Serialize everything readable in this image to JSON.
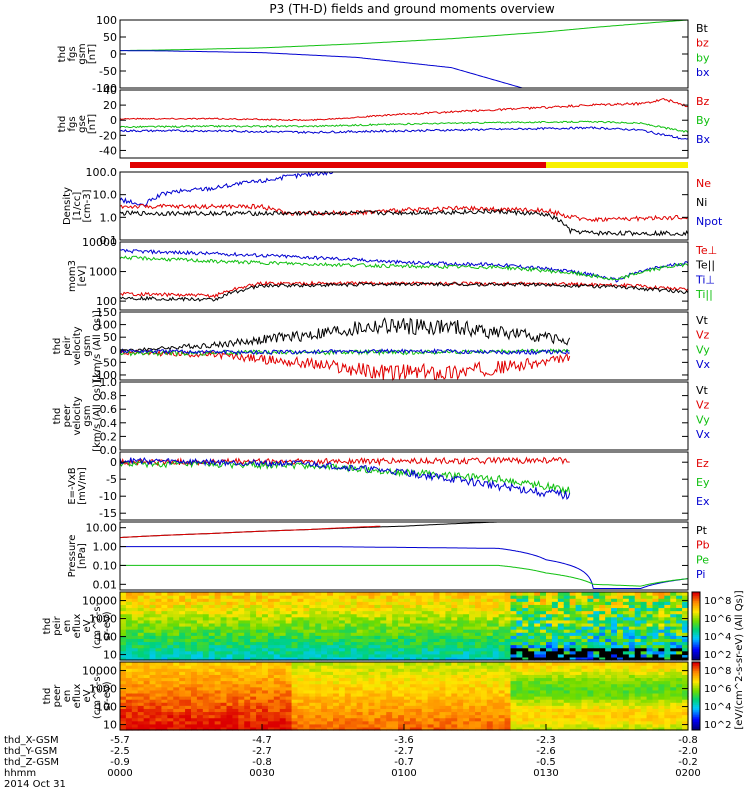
{
  "title": "P3 (TH-D) fields and ground moments overview",
  "colors": {
    "black": "#000000",
    "red": "#e00000",
    "green": "#10c010",
    "blue": "#0000d0",
    "yellow": "#f8f000"
  },
  "chart_data": [
    {
      "type": "line",
      "panel": "fgs_gsm",
      "ylabel": [
        "thd",
        "fgs",
        "gsm",
        "[nT]"
      ],
      "yticks": [
        "100",
        "50",
        "0",
        "-50",
        "-100"
      ],
      "ylim": [
        -100,
        100
      ],
      "legend": [
        {
          "name": "Bt",
          "color": "black"
        },
        {
          "name": "bz",
          "color": "red"
        },
        {
          "name": "by",
          "color": "green"
        },
        {
          "name": "bx",
          "color": "blue"
        }
      ],
      "series": [
        {
          "name": "by",
          "color": "green",
          "x": [
            0,
            10,
            30,
            50,
            70,
            90,
            100,
            115,
            120
          ],
          "y": [
            10,
            12,
            18,
            30,
            45,
            65,
            78,
            95,
            100
          ]
        },
        {
          "name": "bx",
          "color": "blue",
          "x": [
            0,
            10,
            30,
            50,
            70,
            85
          ],
          "y": [
            10,
            9,
            4,
            -10,
            -40,
            -100
          ]
        },
        {
          "name": "Bt",
          "color": "black",
          "x": [
            0,
            3
          ],
          "y": [
            100,
            100
          ]
        }
      ]
    },
    {
      "type": "line",
      "panel": "fgs_gse",
      "ylabel": [
        "thd",
        "fgs",
        "gse",
        "[nT]"
      ],
      "yticks": [
        "40",
        "20",
        "0",
        "-20",
        "-40"
      ],
      "ylim": [
        -50,
        40
      ],
      "legend": [
        {
          "name": "Bz",
          "color": "red"
        },
        {
          "name": "By",
          "color": "green"
        },
        {
          "name": "Bx",
          "color": "blue"
        }
      ],
      "series": [
        {
          "name": "Bz",
          "color": "red",
          "x": [
            0,
            20,
            40,
            60,
            80,
            100,
            110,
            115,
            120
          ],
          "y": [
            2,
            2,
            0,
            8,
            14,
            20,
            22,
            28,
            18
          ]
        },
        {
          "name": "By",
          "color": "green",
          "x": [
            0,
            20,
            40,
            60,
            80,
            100,
            110,
            120
          ],
          "y": [
            -9,
            -8,
            -8,
            -5,
            -3,
            -2,
            -4,
            -16
          ]
        },
        {
          "name": "Bx",
          "color": "blue",
          "x": [
            0,
            20,
            40,
            60,
            80,
            100,
            110,
            120
          ],
          "y": [
            -14,
            -14,
            -16,
            -14,
            -12,
            -10,
            -13,
            -26
          ]
        }
      ]
    },
    {
      "type": "line",
      "panel": "density",
      "scale": "log",
      "ylabel": [
        "Density",
        "[1/cc]",
        "[cm-3]"
      ],
      "yticks": [
        "100.0",
        "10.0",
        "1.0",
        "0.1"
      ],
      "ylim": [
        0.1,
        100
      ],
      "legend": [
        {
          "name": "Ne",
          "color": "red"
        },
        {
          "name": "Ni",
          "color": "black"
        },
        {
          "name": "Npot",
          "color": "blue"
        }
      ],
      "series": [
        {
          "name": "Npot",
          "color": "blue",
          "x": [
            0,
            5,
            10,
            20,
            30,
            40,
            45
          ],
          "y": [
            6,
            3,
            12,
            20,
            40,
            80,
            100
          ]
        },
        {
          "name": "Ne",
          "color": "red",
          "x": [
            0,
            30,
            35,
            50,
            70,
            90,
            95,
            100,
            120
          ],
          "y": [
            3,
            3,
            1.5,
            1.6,
            2.5,
            2,
            1,
            0.8,
            1
          ]
        },
        {
          "name": "Ni",
          "color": "black",
          "x": [
            0,
            20,
            40,
            60,
            80,
            90,
            95,
            100,
            120
          ],
          "y": [
            1.5,
            1.5,
            1.5,
            1.6,
            1.8,
            1.3,
            0.25,
            0.2,
            0.2
          ]
        }
      ]
    },
    {
      "type": "line",
      "panel": "temperature",
      "scale": "log",
      "ylabel": [
        "mom3",
        "[eV]"
      ],
      "yticks": [
        "10000",
        "1000",
        "100"
      ],
      "ylim": [
        50,
        10000
      ],
      "legend": [
        {
          "name": "Te⊥",
          "color": "red"
        },
        {
          "name": "Te||",
          "color": "black"
        },
        {
          "name": "Ti⊥",
          "color": "blue"
        },
        {
          "name": "Ti||",
          "color": "green"
        }
      ],
      "series": [
        {
          "name": "Ti⊥",
          "color": "blue",
          "x": [
            0,
            20,
            40,
            60,
            80,
            95,
            105,
            120
          ],
          "y": [
            5000,
            4000,
            3000,
            2000,
            1700,
            1000,
            500,
            2000
          ]
        },
        {
          "name": "Ti||",
          "color": "green",
          "x": [
            0,
            20,
            40,
            60,
            80,
            95,
            105,
            120
          ],
          "y": [
            3000,
            2200,
            1800,
            1500,
            1400,
            900,
            500,
            1800
          ]
        },
        {
          "name": "Te⊥",
          "color": "red",
          "x": [
            0,
            20,
            30,
            60,
            90,
            105,
            120
          ],
          "y": [
            180,
            150,
            400,
            400,
            380,
            350,
            250
          ]
        },
        {
          "name": "Te||",
          "color": "black",
          "x": [
            0,
            20,
            30,
            60,
            90,
            105,
            120
          ],
          "y": [
            130,
            110,
            330,
            380,
            360,
            300,
            200
          ]
        }
      ]
    },
    {
      "type": "line",
      "panel": "peir_velocity",
      "ylabel": [
        "thd",
        "peir",
        "velocity",
        "gsm",
        "[km/s (All Qs)]"
      ],
      "yticks": [
        "150",
        "100",
        "50",
        "0",
        "-50",
        "-100"
      ],
      "ylim": [
        -120,
        150
      ],
      "legend": [
        {
          "name": "Vt",
          "color": "black"
        },
        {
          "name": "Vz",
          "color": "red"
        },
        {
          "name": "Vy",
          "color": "green"
        },
        {
          "name": "Vx",
          "color": "blue"
        }
      ],
      "series": [
        {
          "name": "Vt",
          "color": "black",
          "x": [
            0,
            20,
            40,
            55,
            70,
            90,
            95
          ],
          "y": [
            -5,
            20,
            60,
            95,
            90,
            50,
            35
          ]
        },
        {
          "name": "Vz",
          "color": "red",
          "x": [
            0,
            20,
            40,
            55,
            70,
            90,
            95
          ],
          "y": [
            -10,
            -20,
            -55,
            -90,
            -90,
            -50,
            -30
          ]
        },
        {
          "name": "Vy",
          "color": "green",
          "x": [
            0,
            30,
            60,
            90,
            95
          ],
          "y": [
            -15,
            -10,
            -10,
            -5,
            -5
          ]
        },
        {
          "name": "Vx",
          "color": "blue",
          "x": [
            0,
            30,
            60,
            90,
            95
          ],
          "y": [
            -5,
            -10,
            -5,
            -10,
            -8
          ]
        }
      ]
    },
    {
      "type": "line",
      "panel": "peer_velocity",
      "ylabel": [
        "thd",
        "peer",
        "velocity",
        "gsm",
        "[km/s (All Qs)]"
      ],
      "yticks": [
        "1.0",
        "0.8",
        "0.6",
        "0.4",
        "0.2",
        "0.0"
      ],
      "ylim": [
        0,
        1
      ],
      "legend": [
        {
          "name": "Vt",
          "color": "black"
        },
        {
          "name": "Vz",
          "color": "red"
        },
        {
          "name": "Vy",
          "color": "green"
        },
        {
          "name": "Vx",
          "color": "blue"
        }
      ],
      "series": []
    },
    {
      "type": "line",
      "panel": "efield",
      "ylabel": [
        "E=-VxB",
        "[mV/m]"
      ],
      "yticks": [
        "0",
        "-5",
        "-10",
        "-15"
      ],
      "ylim": [
        -17,
        3
      ],
      "legend": [
        {
          "name": "Ez",
          "color": "red"
        },
        {
          "name": "Ey",
          "color": "green"
        },
        {
          "name": "Ex",
          "color": "blue"
        }
      ],
      "series": [
        {
          "name": "Ez",
          "color": "red",
          "x": [
            0,
            95
          ],
          "y": [
            0,
            0.5
          ]
        },
        {
          "name": "Ey",
          "color": "green",
          "x": [
            0,
            40,
            60,
            80,
            95
          ],
          "y": [
            -0.5,
            -1,
            -3,
            -5,
            -8
          ]
        },
        {
          "name": "Ex",
          "color": "blue",
          "x": [
            0,
            40,
            60,
            80,
            95
          ],
          "y": [
            0.5,
            -0.5,
            -3,
            -7,
            -10
          ]
        }
      ]
    },
    {
      "type": "line",
      "panel": "pressure",
      "scale": "log",
      "ylabel": [
        "Pressure",
        "[nPa]"
      ],
      "yticks": [
        "10.00",
        "1.00",
        "0.10",
        "0.01"
      ],
      "ylim": [
        0.005,
        20
      ],
      "legend": [
        {
          "name": "Pt",
          "color": "black"
        },
        {
          "name": "Pb",
          "color": "red"
        },
        {
          "name": "Pe",
          "color": "green"
        },
        {
          "name": "Pi",
          "color": "blue"
        }
      ],
      "series": [
        {
          "name": "Pt",
          "color": "black",
          "x": [
            0,
            20,
            40,
            60,
            80
          ],
          "y": [
            3,
            5,
            8,
            12,
            20
          ]
        },
        {
          "name": "Pb",
          "color": "red",
          "x": [
            0,
            20,
            40,
            55
          ],
          "y": [
            3,
            5,
            8,
            12
          ]
        },
        {
          "name": "Pi",
          "color": "blue",
          "x": [
            0,
            40,
            80,
            90,
            100,
            110,
            120
          ],
          "y": [
            1,
            1,
            0.8,
            0.2,
            0.006,
            0.006,
            0.02
          ]
        },
        {
          "name": "Pe",
          "color": "green",
          "x": [
            0,
            40,
            80,
            90,
            100,
            110,
            120
          ],
          "y": [
            0.1,
            0.1,
            0.1,
            0.04,
            0.01,
            0.008,
            0.02
          ]
        }
      ]
    },
    {
      "type": "heatmap",
      "panel": "peir_eflux",
      "ylabel": [
        "thd",
        "peir",
        "en",
        "eflux",
        "eV",
        "(cm^2-s-",
        "sr-eV)"
      ],
      "yticks": [
        "10000",
        "1000",
        "100",
        "10"
      ],
      "colorbar_label": "[eV/(cm^2-s-sr-eV) (All Qs)]",
      "colorbar_ticks": [
        "10^8",
        "10^6",
        "10^4",
        "10^2"
      ]
    },
    {
      "type": "heatmap",
      "panel": "peer_eflux",
      "ylabel": [
        "thd",
        "peer",
        "en",
        "eflux",
        "eV",
        "(cm^2-s-",
        "sr-eV)"
      ],
      "yticks": [
        "10000",
        "1000",
        "100",
        "10"
      ],
      "colorbar_label": "[eV/(cm^2-s-sr-eV) (All Qs)]",
      "colorbar_ticks": [
        "10^8",
        "10^6",
        "10^4",
        "10^2"
      ]
    }
  ],
  "xaxis": {
    "xlim": [
      0,
      120
    ],
    "labels": [
      "thd_X-GSM",
      "thd_Y-GSM",
      "thd_Z-GSM",
      "hhmm",
      "2014 Oct 31"
    ],
    "ticks": [
      {
        "x": 0,
        "rows": [
          "-5.7",
          "-2.5",
          "-0.9",
          "0000"
        ]
      },
      {
        "x": 30,
        "rows": [
          "-4.7",
          "-2.7",
          "-0.8",
          "0030"
        ]
      },
      {
        "x": 60,
        "rows": [
          "-3.6",
          "-2.7",
          "-0.7",
          "0100"
        ]
      },
      {
        "x": 90,
        "rows": [
          "-2.3",
          "-2.6",
          "-0.5",
          "0130"
        ]
      },
      {
        "x": 120,
        "rows": [
          "-0.8",
          "-2.0",
          "-0.2",
          "0200"
        ]
      }
    ]
  }
}
